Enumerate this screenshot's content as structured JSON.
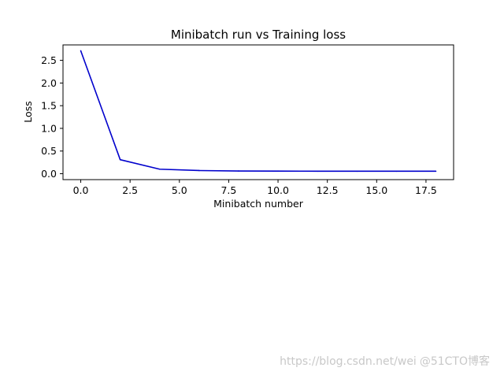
{
  "chart_data": {
    "type": "line",
    "title": "Minibatch run vs Training loss",
    "xlabel": "Minibatch number",
    "ylabel": "Loss",
    "xlim": [
      -0.9,
      18.9
    ],
    "ylim": [
      -0.13,
      2.84
    ],
    "xticks": [
      0.0,
      2.5,
      5.0,
      7.5,
      10.0,
      12.5,
      15.0,
      17.5
    ],
    "xtick_labels": [
      "0.0",
      "2.5",
      "5.0",
      "7.5",
      "10.0",
      "12.5",
      "15.0",
      "17.5"
    ],
    "yticks": [
      0.0,
      0.5,
      1.0,
      1.5,
      2.0,
      2.5
    ],
    "ytick_labels": [
      "0.0",
      "0.5",
      "1.0",
      "1.5",
      "2.0",
      "2.5"
    ],
    "grid": false,
    "series": [
      {
        "color": "#0000cc",
        "x": [
          0,
          2,
          4,
          6,
          8,
          10,
          12,
          14,
          16,
          18
        ],
        "y": [
          2.71,
          0.31,
          0.1,
          0.07,
          0.06,
          0.058,
          0.056,
          0.055,
          0.055,
          0.055
        ]
      }
    ]
  },
  "watermark": {
    "url": "https://blog.csdn.net/wei",
    "brand": "@51CTO博客"
  }
}
